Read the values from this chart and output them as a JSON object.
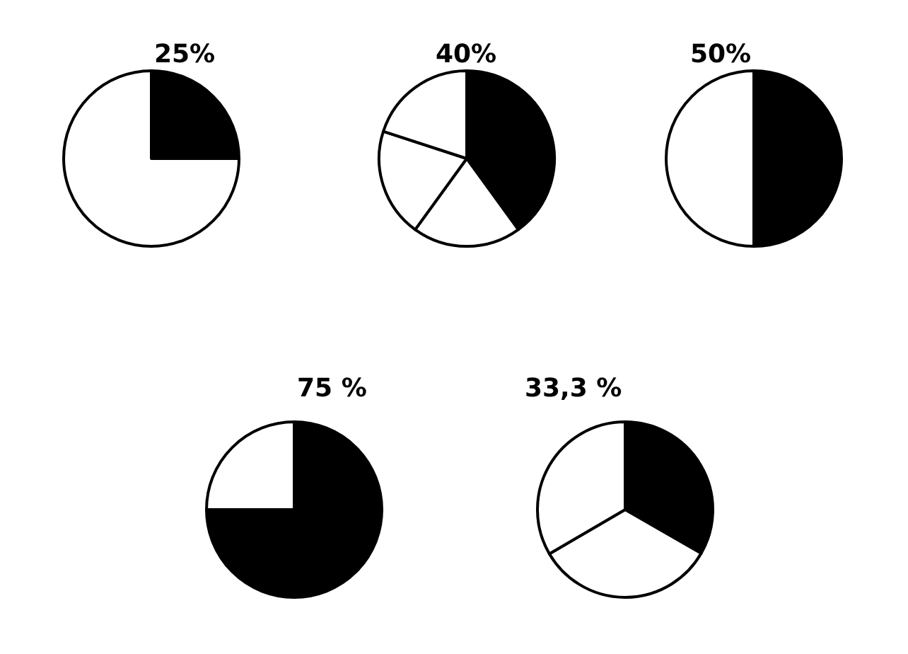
{
  "chart_data": [
    {
      "type": "pie",
      "title": "25%",
      "categories": [
        null,
        null
      ],
      "values": [
        25,
        75
      ],
      "colors": [
        "#000000",
        "#ffffff"
      ]
    },
    {
      "type": "pie",
      "title": "40%",
      "categories": [
        null,
        null,
        null,
        null
      ],
      "values": [
        40,
        20,
        20,
        20
      ],
      "colors": [
        "#000000",
        "#ffffff",
        "#ffffff",
        "#ffffff"
      ]
    },
    {
      "type": "pie",
      "title": "50%",
      "categories": [
        null,
        null
      ],
      "values": [
        50,
        50
      ],
      "colors": [
        "#000000",
        "#ffffff"
      ]
    },
    {
      "type": "pie",
      "title": "75 %",
      "categories": [
        null,
        null
      ],
      "values": [
        75,
        25
      ],
      "colors": [
        "#000000",
        "#ffffff"
      ]
    },
    {
      "type": "pie",
      "title": "33,3 %",
      "categories": [
        null,
        null,
        null
      ],
      "values": [
        33.3,
        33.3,
        33.4
      ],
      "colors": [
        "#000000",
        "#ffffff",
        "#ffffff"
      ]
    }
  ]
}
